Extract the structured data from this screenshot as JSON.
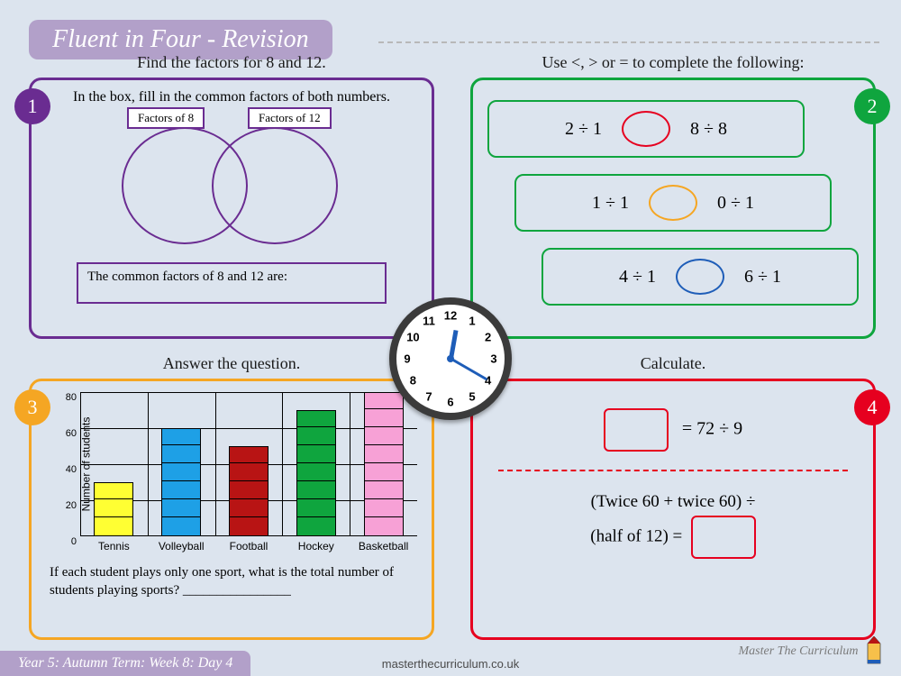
{
  "title": "Fluent in Four - Revision",
  "footer": "Year 5: Autumn Term: Week 8: Day 4",
  "url": "masterthecurriculum.co.uk",
  "brand": "Master The Curriculum",
  "colors": {
    "bg": "#dce4ee",
    "title_bg": "#b2a0c9",
    "p1": "#6a2c91",
    "p2": "#0fa53e",
    "p3": "#f5a623",
    "p4": "#e6001f",
    "blue": "#1e5db8"
  },
  "panel1": {
    "badge": "1",
    "title": "Find the factors for 8 and 12.",
    "subtitle": "In the box, fill in the common factors of both numbers.",
    "venn_left_label": "Factors of 8",
    "venn_right_label": "Factors of 12",
    "common_label": "The common factors of 8 and 12 are:"
  },
  "panel2": {
    "badge": "2",
    "title": "Use <, > or = to complete the following:",
    "rows": [
      {
        "left": "2  ÷  1",
        "right": "8  ÷  8",
        "oval_color": "#e6001f"
      },
      {
        "left": "1  ÷  1",
        "right": "0  ÷  1",
        "oval_color": "#f5a623"
      },
      {
        "left": "4  ÷  1",
        "right": "6  ÷  1",
        "oval_color": "#1e5db8"
      }
    ]
  },
  "clock": {
    "hour": 12,
    "minute": 20
  },
  "panel3": {
    "badge": "3",
    "title": "Answer the question.",
    "chart": {
      "type": "bar",
      "y_label": "Number of students",
      "y_max": 80,
      "y_step": 20,
      "categories": [
        "Tennis",
        "Volleyball",
        "Football",
        "Hockey",
        "Basketball"
      ],
      "values": [
        30,
        60,
        50,
        70,
        80
      ],
      "colors": [
        "#ffff33",
        "#1ea0e6",
        "#b81414",
        "#0fa53e",
        "#f7a1d6"
      ]
    },
    "question": "If each student plays only one sport, what is the total number of students playing sports?  ________________"
  },
  "panel4": {
    "badge": "4",
    "title": "Calculate.",
    "eq1_rhs": "= 72 ÷ 9",
    "eq2_line1": "(Twice 60 + twice 60) ÷",
    "eq2_line2": "(half of 12) ="
  }
}
